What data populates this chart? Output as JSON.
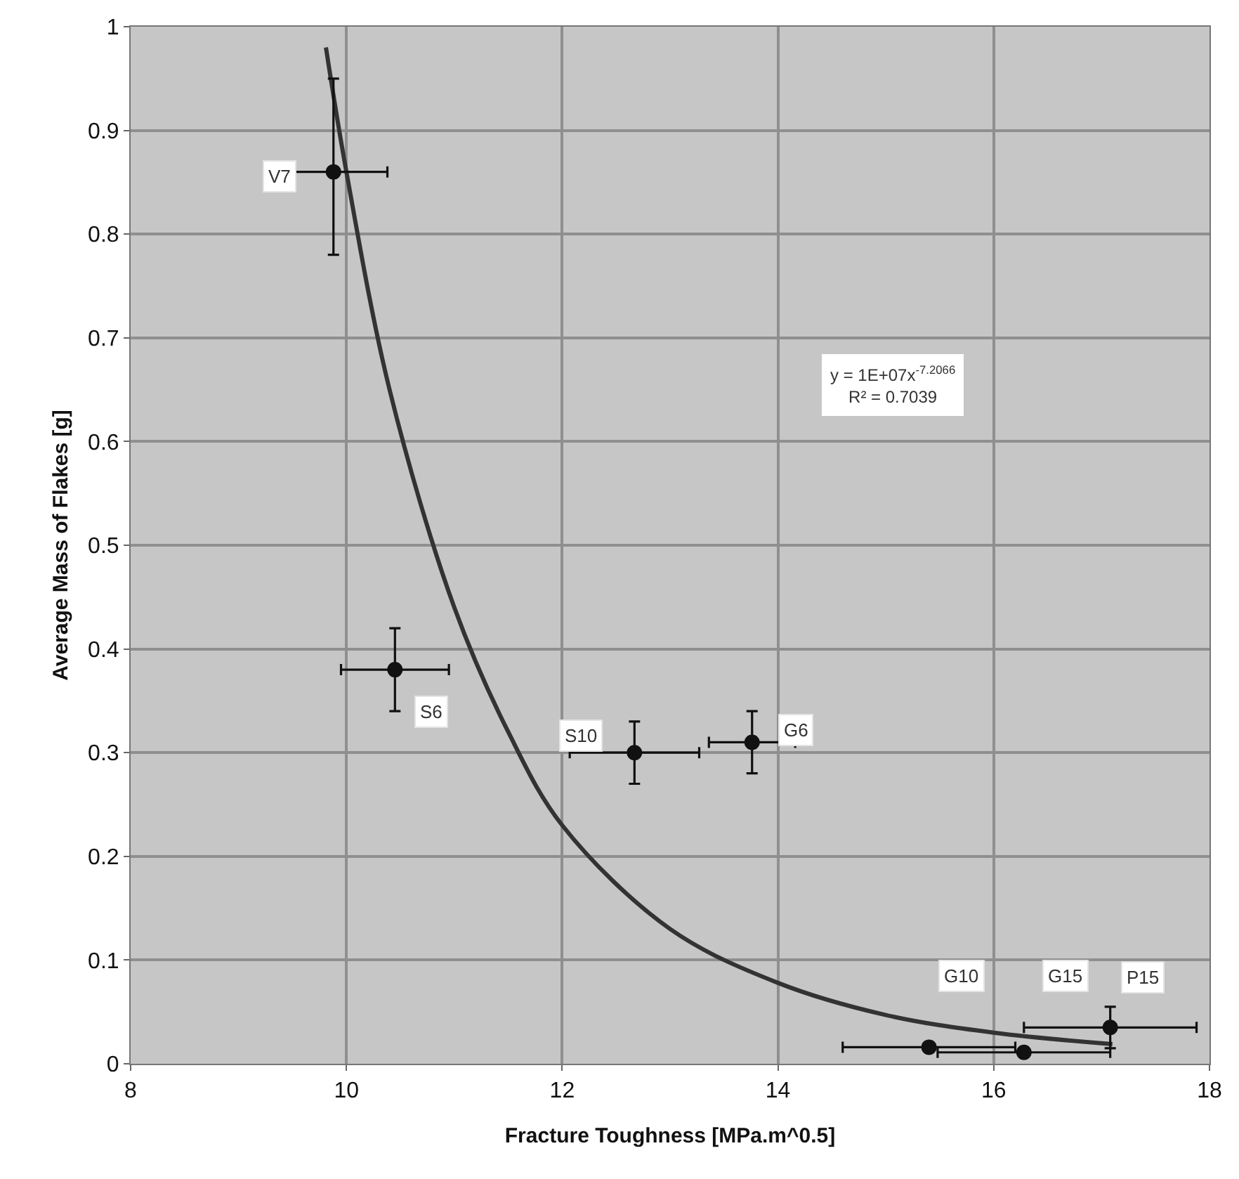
{
  "chart_data": {
    "type": "scatter",
    "xlabel": "Fracture Toughness [MPa.m^0.5]",
    "ylabel": "Average Mass of Flakes [g]",
    "xlim": [
      8,
      18
    ],
    "ylim": [
      0,
      1
    ],
    "xticks": [
      8,
      10,
      12,
      14,
      16,
      18
    ],
    "yticks": [
      0,
      0.1,
      0.2,
      0.3,
      0.4,
      0.5,
      0.6,
      0.7,
      0.8,
      0.9,
      1
    ],
    "grid": true,
    "series": [
      {
        "type": "scatter",
        "color": "#111111",
        "marker": "circle",
        "x": [
          9.88,
          10.45,
          12.67,
          13.76,
          15.4,
          16.28,
          17.08
        ],
        "values": [
          0.86,
          0.38,
          0.3,
          0.31,
          0.016,
          0.011,
          0.035
        ],
        "errors": [
          [
            0.78,
            0.95
          ],
          0.04,
          0.03,
          0.03,
          null,
          null,
          0.02
        ],
        "xerrors": [
          0.5,
          0.5,
          0.6,
          0.4,
          0.8,
          0.8,
          0.8
        ]
      },
      {
        "type": "line",
        "color": "#333333",
        "x": [
          9.81,
          10,
          10.4,
          11,
          11.5,
          12,
          13,
          14,
          15,
          16,
          17.1
        ],
        "values": [
          0.98,
          0.86,
          0.65,
          0.44,
          0.32,
          0.23,
          0.13,
          0.078,
          0.047,
          0.03,
          0.019
        ]
      }
    ],
    "annotations": [
      "y = 1E+07x$^{-7.2066}$\nR² = 0.7039",
      {
        "text": "V7",
        "x": 9.88,
        "y": 0.86
      },
      {
        "text": "S6",
        "x": 10.45,
        "y": 0.38
      },
      {
        "text": "S10",
        "x": 12.67,
        "y": 0.3
      },
      {
        "text": "G6",
        "x": 13.76,
        "y": 0.31
      },
      "G10",
      "G15",
      {
        "text": "P15",
        "x": 17.08,
        "y": 0.035
      }
    ]
  }
}
